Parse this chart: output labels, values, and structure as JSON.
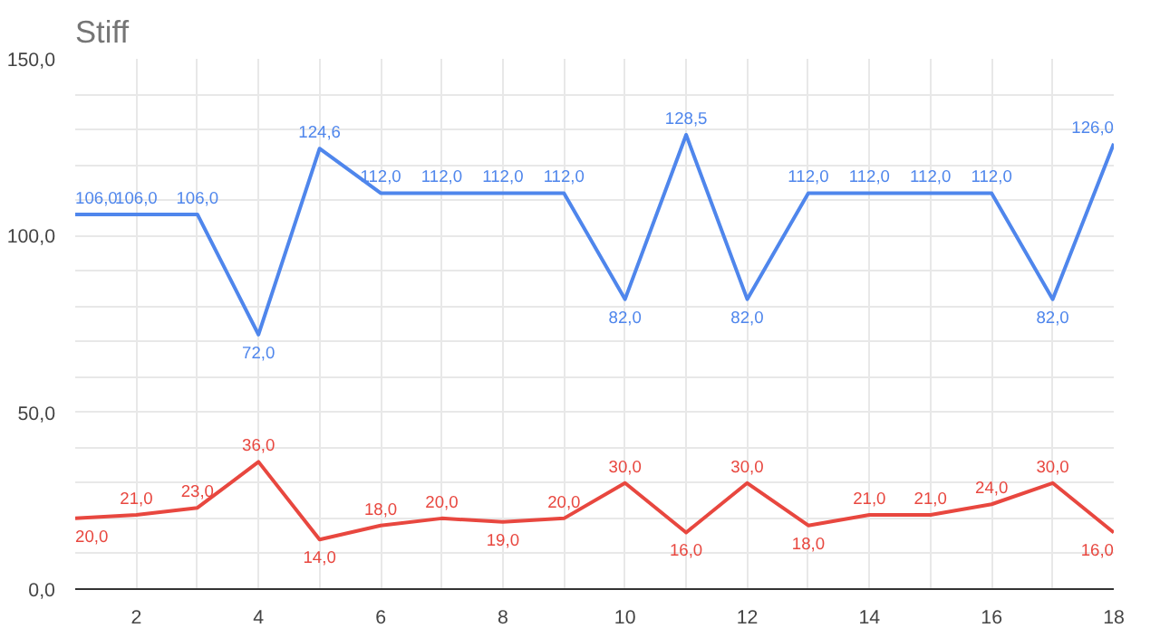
{
  "chart_data": {
    "type": "line",
    "title": "Stiff",
    "x": [
      1,
      2,
      3,
      4,
      5,
      6,
      7,
      8,
      9,
      10,
      11,
      12,
      13,
      14,
      15,
      16,
      17,
      18
    ],
    "series": [
      {
        "color": "#4f86ec",
        "values": [
          106,
          106,
          106,
          72,
          124.6,
          112,
          112,
          112,
          112,
          82,
          128.5,
          82,
          112,
          112,
          112,
          112,
          82,
          126
        ],
        "value_labels": [
          "106,0",
          "106,0",
          "106,0",
          "72,0",
          "124,6",
          "112,0",
          "112,0",
          "112,0",
          "112,0",
          "82,0",
          "128,5",
          "82,0",
          "112,0",
          "112,0",
          "112,0",
          "112,0",
          "82,0",
          "126,0"
        ]
      },
      {
        "color": "#e8473f",
        "values": [
          20,
          21,
          23,
          36,
          14,
          18,
          20,
          19,
          20,
          30,
          16,
          30,
          18,
          21,
          21,
          24,
          30,
          16
        ],
        "value_labels": [
          "20,0",
          "21,0",
          "23,0",
          "36,0",
          "14,0",
          "18,0",
          "20,0",
          "19,0",
          "20,0",
          "30,0",
          "16,0",
          "30,0",
          "18,0",
          "21,0",
          "21,0",
          "24,0",
          "30,0",
          "16,0"
        ]
      }
    ],
    "xlim": [
      1,
      18
    ],
    "xticks": [
      {
        "value": 2,
        "label": "2"
      },
      {
        "value": 3,
        "label": null
      },
      {
        "value": 4,
        "label": "4"
      },
      {
        "value": 5,
        "label": null
      },
      {
        "value": 6,
        "label": "6"
      },
      {
        "value": 7,
        "label": null
      },
      {
        "value": 8,
        "label": "8"
      },
      {
        "value": 9,
        "label": null
      },
      {
        "value": 10,
        "label": "10"
      },
      {
        "value": 11,
        "label": null
      },
      {
        "value": 12,
        "label": "12"
      },
      {
        "value": 13,
        "label": null
      },
      {
        "value": 14,
        "label": "14"
      },
      {
        "value": 15,
        "label": null
      },
      {
        "value": 16,
        "label": "16"
      },
      {
        "value": 17,
        "label": null
      },
      {
        "value": 18,
        "label": "18"
      }
    ],
    "ylim": [
      0,
      150
    ],
    "yticks": [
      {
        "value": 0,
        "label": "0,0"
      },
      {
        "value": 10,
        "label": null
      },
      {
        "value": 20,
        "label": null
      },
      {
        "value": 30,
        "label": null
      },
      {
        "value": 40,
        "label": null
      },
      {
        "value": 50,
        "label": "50,0"
      },
      {
        "value": 60,
        "label": null
      },
      {
        "value": 70,
        "label": null
      },
      {
        "value": 80,
        "label": null
      },
      {
        "value": 90,
        "label": null
      },
      {
        "value": 100,
        "label": "100,0"
      },
      {
        "value": 110,
        "label": null
      },
      {
        "value": 120,
        "label": null
      },
      {
        "value": 130,
        "label": null
      },
      {
        "value": 140,
        "label": null
      },
      {
        "value": 150,
        "label": "150,0"
      }
    ],
    "grid": true,
    "marker": "none",
    "line_style": "solid"
  }
}
